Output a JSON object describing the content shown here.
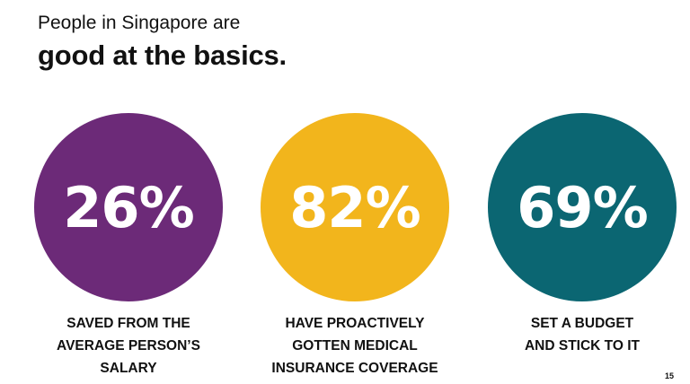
{
  "header": {
    "subtitle": "People in Singapore are",
    "title": "good at the basics."
  },
  "stats": [
    {
      "value": "26%",
      "color": "#6c2a78",
      "caption_lines": [
        "SAVED FROM THE",
        "AVERAGE PERSON’S",
        "SALARY"
      ]
    },
    {
      "value": "82%",
      "color": "#f2b51c",
      "caption_lines": [
        "HAVE PROACTIVELY",
        "GOTTEN MEDICAL",
        "INSURANCE COVERAGE"
      ]
    },
    {
      "value": "69%",
      "color": "#0b6672",
      "caption_lines": [
        "SET A BUDGET",
        "AND STICK TO IT"
      ]
    }
  ],
  "footer": {
    "page_number": "15"
  }
}
